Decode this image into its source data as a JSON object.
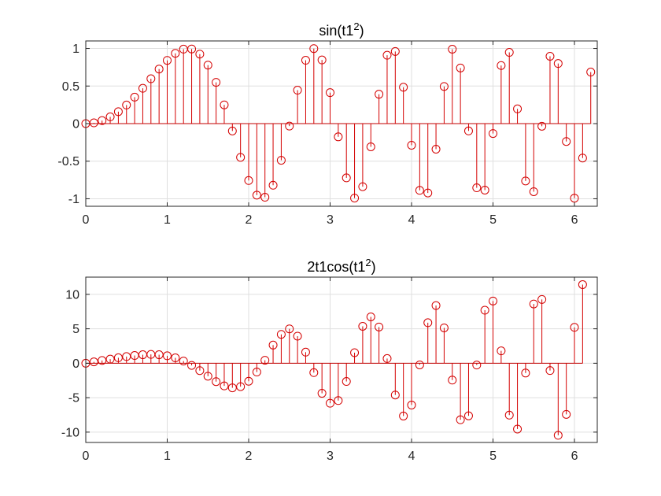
{
  "chart_data": [
    {
      "type": "stem",
      "title": "sin(t1²)",
      "title_base": "sin(t1",
      "title_sup": "2",
      "title_tail": ")",
      "xlabel": "",
      "ylabel": "",
      "xlim": [
        0,
        6.28
      ],
      "ylim": [
        -1.1,
        1.1
      ],
      "xticks": [
        0,
        1,
        2,
        3,
        4,
        5,
        6
      ],
      "xtick_labels": [
        "0",
        "1",
        "2",
        "3",
        "4",
        "5",
        "6"
      ],
      "yticks": [
        -1,
        -0.5,
        0,
        0.5,
        1
      ],
      "ytick_labels": [
        "-1",
        "-0.5",
        "0",
        "0.5",
        "1"
      ],
      "grid": true,
      "color": "#d40000",
      "x": [
        0,
        0.1,
        0.2,
        0.3,
        0.4,
        0.5,
        0.6,
        0.7,
        0.8,
        0.9,
        1.0,
        1.1,
        1.2,
        1.3,
        1.4,
        1.5,
        1.6,
        1.7,
        1.8,
        1.9,
        2.0,
        2.1,
        2.2,
        2.3,
        2.4,
        2.5,
        2.6,
        2.7,
        2.8,
        2.9,
        3.0,
        3.1,
        3.2,
        3.3,
        3.4,
        3.5,
        3.6,
        3.7,
        3.8,
        3.9,
        4.0,
        4.1,
        4.2,
        4.3,
        4.4,
        4.5,
        4.6,
        4.7,
        4.8,
        4.9,
        5.0,
        5.1,
        5.2,
        5.3,
        5.4,
        5.5,
        5.6,
        5.7,
        5.8,
        5.9,
        6.0,
        6.1,
        6.2
      ],
      "values": [
        0.0,
        0.01,
        0.04,
        0.09,
        0.159,
        0.247,
        0.352,
        0.47,
        0.597,
        0.726,
        0.841,
        0.935,
        0.991,
        0.993,
        0.925,
        0.778,
        0.549,
        0.249,
        -0.098,
        -0.449,
        -0.757,
        -0.952,
        -0.98,
        -0.82,
        -0.488,
        -0.033,
        0.445,
        0.843,
        0.998,
        0.847,
        0.412,
        -0.176,
        -0.722,
        -0.991,
        -0.839,
        -0.309,
        0.391,
        0.91,
        0.96,
        0.484,
        -0.288,
        -0.888,
        -0.923,
        -0.34,
        0.494,
        0.99,
        0.74,
        -0.097,
        -0.854,
        -0.885,
        -0.132,
        0.773,
        0.948,
        0.196,
        -0.763,
        -0.906,
        -0.035,
        0.896,
        0.8,
        -0.238,
        -0.992,
        -0.458,
        0.686
      ]
    },
    {
      "type": "stem",
      "title": "2t1cos(t1²)",
      "title_base": "2t1cos(t1",
      "title_sup": "2",
      "title_tail": ")",
      "xlabel": "",
      "ylabel": "",
      "xlim": [
        0,
        6.28
      ],
      "ylim": [
        -11.5,
        12.5
      ],
      "xticks": [
        0,
        1,
        2,
        3,
        4,
        5,
        6
      ],
      "xtick_labels": [
        "0",
        "1",
        "2",
        "3",
        "4",
        "5",
        "6"
      ],
      "yticks": [
        -10,
        -5,
        0,
        5,
        10
      ],
      "ytick_labels": [
        "-10",
        "-5",
        "0",
        "5",
        "10"
      ],
      "grid": true,
      "color": "#d40000",
      "x": [
        0,
        0.1,
        0.2,
        0.3,
        0.4,
        0.5,
        0.6,
        0.7,
        0.8,
        0.9,
        1.0,
        1.1,
        1.2,
        1.3,
        1.4,
        1.5,
        1.6,
        1.7,
        1.8,
        1.9,
        2.0,
        2.1,
        2.2,
        2.3,
        2.4,
        2.5,
        2.6,
        2.7,
        2.8,
        2.9,
        3.0,
        3.1,
        3.2,
        3.3,
        3.4,
        3.5,
        3.6,
        3.7,
        3.8,
        3.9,
        4.0,
        4.1,
        4.2,
        4.3,
        4.4,
        4.5,
        4.6,
        4.7,
        4.8,
        4.9,
        5.0,
        5.1,
        5.2,
        5.3,
        5.4,
        5.5,
        5.6,
        5.7,
        5.8,
        5.9,
        6.0,
        6.1
      ],
      "values": [
        0.0,
        0.2,
        0.4,
        0.599,
        0.795,
        0.969,
        1.124,
        1.236,
        1.283,
        1.237,
        1.081,
        0.782,
        0.319,
        -0.313,
        -1.069,
        -1.885,
        -2.67,
        -3.289,
        -3.565,
        -3.397,
        -2.614,
        -1.276,
        0.433,
        2.637,
        4.188,
        4.99,
        3.93,
        1.612,
        -1.358,
        -4.363,
        -5.803,
        -5.419,
        -2.646,
        1.534,
        5.363,
        6.729,
        5.259,
        0.681,
        -4.611,
        -7.663,
        -6.065,
        -0.238,
        5.883,
        8.378,
        5.133,
        -2.446,
        -8.205,
        -7.635,
        -0.259,
        7.697,
        9.028,
        1.798,
        -7.53,
        -9.552,
        -1.421,
        8.601,
        9.26,
        -1.06,
        -10.459,
        -7.425,
        5.213,
        11.42
      ]
    }
  ]
}
